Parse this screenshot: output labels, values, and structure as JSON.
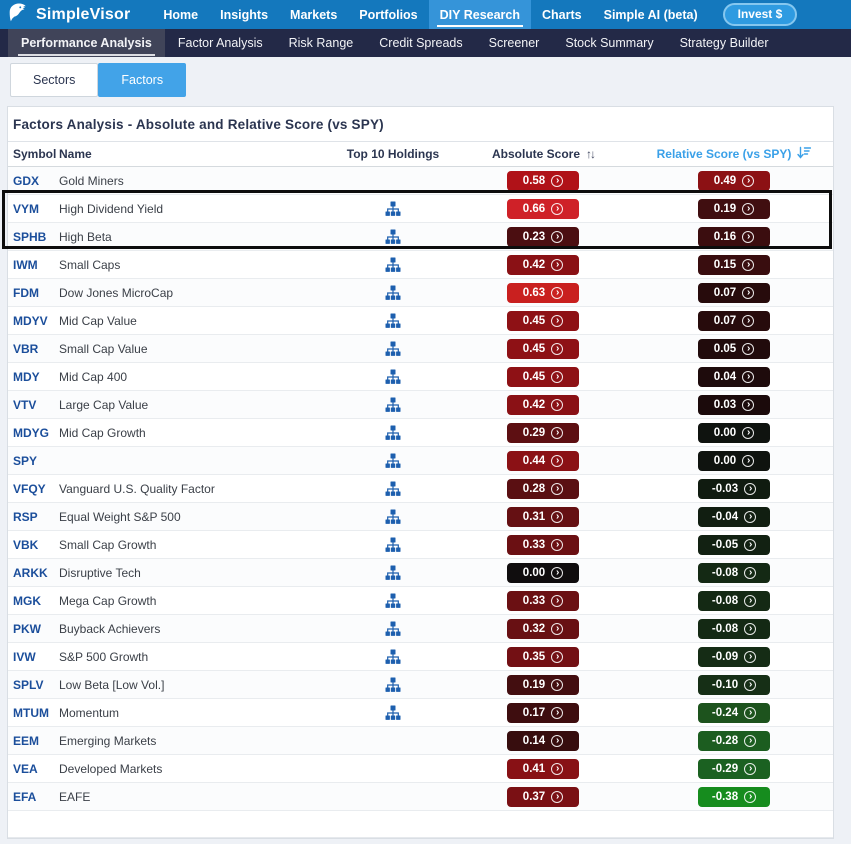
{
  "top_nav": {
    "brand": "SimpleVisor",
    "items": [
      {
        "label": "Home",
        "active": false
      },
      {
        "label": "Insights",
        "active": false
      },
      {
        "label": "Markets",
        "active": false
      },
      {
        "label": "Portfolios",
        "active": false
      },
      {
        "label": "DIY Research",
        "active": true
      },
      {
        "label": "Charts",
        "active": false
      },
      {
        "label": "Simple AI (beta)",
        "active": false
      }
    ],
    "invest_button": "Invest $"
  },
  "sub_nav": {
    "items": [
      {
        "label": "Performance Analysis",
        "active": true
      },
      {
        "label": "Factor Analysis",
        "active": false
      },
      {
        "label": "Risk Range",
        "active": false
      },
      {
        "label": "Credit Spreads",
        "active": false
      },
      {
        "label": "Screener",
        "active": false
      },
      {
        "label": "Stock Summary",
        "active": false
      },
      {
        "label": "Strategy Builder",
        "active": false
      }
    ]
  },
  "tabs": [
    {
      "label": "Sectors",
      "active": false
    },
    {
      "label": "Factors",
      "active": true
    }
  ],
  "panel": {
    "title": "Factors Analysis - Absolute and Relative Score (vs SPY)",
    "columns": {
      "symbol": "Symbol",
      "name": "Name",
      "holdings": "Top 10 Holdings",
      "absolute": "Absolute Score",
      "relative": "Relative Score (vs SPY)"
    },
    "sort": {
      "absolute_state": "unsorted",
      "relative_state": "descending"
    }
  },
  "rows": [
    {
      "symbol": "GDX",
      "name": "Gold Miners",
      "holdings_icon": false,
      "abs": "0.58",
      "abs_color": "#b01218",
      "rel": "0.49",
      "rel_color": "#8c1114"
    },
    {
      "symbol": "VYM",
      "name": "High Dividend Yield",
      "holdings_icon": true,
      "abs": "0.66",
      "abs_color": "#cf2128",
      "rel": "0.19",
      "rel_color": "#400e10",
      "highlighted": true
    },
    {
      "symbol": "SPHB",
      "name": "High Beta",
      "holdings_icon": true,
      "abs": "0.23",
      "abs_color": "#4b0e11",
      "rel": "0.16",
      "rel_color": "#3b0d0f",
      "highlighted": true
    },
    {
      "symbol": "IWM",
      "name": "Small Caps",
      "holdings_icon": true,
      "abs": "0.42",
      "abs_color": "#8a1115",
      "rel": "0.15",
      "rel_color": "#390d0f"
    },
    {
      "symbol": "FDM",
      "name": "Dow Jones MicroCap",
      "holdings_icon": true,
      "abs": "0.63",
      "abs_color": "#c9201f",
      "rel": "0.07",
      "rel_color": "#270b0c"
    },
    {
      "symbol": "MDYV",
      "name": "Mid Cap Value",
      "holdings_icon": true,
      "abs": "0.45",
      "abs_color": "#8e1115",
      "rel": "0.07",
      "rel_color": "#270b0c"
    },
    {
      "symbol": "VBR",
      "name": "Small Cap Value",
      "holdings_icon": true,
      "abs": "0.45",
      "abs_color": "#8e1115",
      "rel": "0.05",
      "rel_color": "#210b0c"
    },
    {
      "symbol": "MDY",
      "name": "Mid Cap 400",
      "holdings_icon": true,
      "abs": "0.45",
      "abs_color": "#8e1115",
      "rel": "0.04",
      "rel_color": "#1e0b0c"
    },
    {
      "symbol": "VTV",
      "name": "Large Cap Value",
      "holdings_icon": true,
      "abs": "0.42",
      "abs_color": "#8a1115",
      "rel": "0.03",
      "rel_color": "#1b0a0b"
    },
    {
      "symbol": "MDYG",
      "name": "Mid Cap Growth",
      "holdings_icon": true,
      "abs": "0.29",
      "abs_color": "#5d0f12",
      "rel": "0.00",
      "rel_color": "#0f130f"
    },
    {
      "symbol": "SPY",
      "name": "",
      "holdings_icon": true,
      "abs": "0.44",
      "abs_color": "#8b1115",
      "rel": "0.00",
      "rel_color": "#0f130f"
    },
    {
      "symbol": "VFQY",
      "name": "Vanguard U.S. Quality Factor",
      "holdings_icon": true,
      "abs": "0.28",
      "abs_color": "#5a0f12",
      "rel": "-0.03",
      "rel_color": "#101b10"
    },
    {
      "symbol": "RSP",
      "name": "Equal Weight S&P 500",
      "holdings_icon": true,
      "abs": "0.31",
      "abs_color": "#651013",
      "rel": "-0.04",
      "rel_color": "#111e11"
    },
    {
      "symbol": "VBK",
      "name": "Small Cap Growth",
      "holdings_icon": true,
      "abs": "0.33",
      "abs_color": "#6b1013",
      "rel": "-0.05",
      "rel_color": "#122112"
    },
    {
      "symbol": "ARKK",
      "name": "Disruptive Tech",
      "holdings_icon": true,
      "abs": "0.00",
      "abs_color": "#100d0e",
      "rel": "-0.08",
      "rel_color": "#142914"
    },
    {
      "symbol": "MGK",
      "name": "Mega Cap Growth",
      "holdings_icon": true,
      "abs": "0.33",
      "abs_color": "#6b1013",
      "rel": "-0.08",
      "rel_color": "#142914"
    },
    {
      "symbol": "PKW",
      "name": "Buyback Achievers",
      "holdings_icon": true,
      "abs": "0.32",
      "abs_color": "#681013",
      "rel": "-0.08",
      "rel_color": "#142914"
    },
    {
      "symbol": "IVW",
      "name": "S&P 500 Growth",
      "holdings_icon": true,
      "abs": "0.35",
      "abs_color": "#731014",
      "rel": "-0.09",
      "rel_color": "#152c15"
    },
    {
      "symbol": "SPLV",
      "name": "Low Beta [Low Vol.]",
      "holdings_icon": true,
      "abs": "0.19",
      "abs_color": "#430e10",
      "rel": "-0.10",
      "rel_color": "#162f16"
    },
    {
      "symbol": "MTUM",
      "name": "Momentum",
      "holdings_icon": true,
      "abs": "0.17",
      "abs_color": "#3e0d0f",
      "rel": "-0.24",
      "rel_color": "#1d531d"
    },
    {
      "symbol": "EEM",
      "name": "Emerging Markets",
      "holdings_icon": false,
      "abs": "0.14",
      "abs_color": "#370d0e",
      "rel": "-0.28",
      "rel_color": "#1c5d20"
    },
    {
      "symbol": "VEA",
      "name": "Developed Markets",
      "holdings_icon": false,
      "abs": "0.41",
      "abs_color": "#881115",
      "rel": "-0.29",
      "rel_color": "#1b6121"
    },
    {
      "symbol": "EFA",
      "name": "EAFE",
      "holdings_icon": false,
      "abs": "0.37",
      "abs_color": "#7a1014",
      "rel": "-0.38",
      "rel_color": "#168c1e"
    }
  ],
  "annotation": {
    "type": "highlight-box",
    "rows": [
      "VYM",
      "SPHB"
    ]
  },
  "colors": {
    "top_nav_bg": "#1478bd",
    "top_nav_active_bg": "#3594d9",
    "sub_nav_bg": "#232947",
    "tab_active_bg": "#42a3e8",
    "relative_header": "#3aa0e8",
    "symbol_link": "#1b4e9b"
  }
}
